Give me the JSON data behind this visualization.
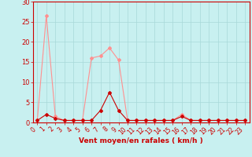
{
  "title": "",
  "xlabel": "Vent moyen/en rafales ( km/h )",
  "ylabel": "",
  "bg_color": "#c8f0f0",
  "grid_color": "#a8d8d8",
  "line1_color": "#ff9090",
  "line2_color": "#cc0000",
  "x": [
    0,
    1,
    2,
    3,
    4,
    5,
    6,
    7,
    8,
    9,
    10,
    11,
    12,
    13,
    14,
    15,
    16,
    17,
    18,
    19,
    20,
    21,
    22,
    23
  ],
  "y_rafales": [
    0.5,
    26.5,
    1.5,
    0.5,
    0.5,
    0.5,
    16.0,
    16.5,
    18.5,
    15.5,
    0.5,
    0.5,
    0.5,
    0.5,
    0.5,
    0.5,
    2.0,
    0.5,
    0.5,
    0.5,
    0.5,
    0.5,
    0.5,
    0.5
  ],
  "y_moyen": [
    0.5,
    2.0,
    1.0,
    0.5,
    0.5,
    0.5,
    0.5,
    3.0,
    7.5,
    3.0,
    0.5,
    0.5,
    0.5,
    0.5,
    0.5,
    0.5,
    1.5,
    0.5,
    0.5,
    0.5,
    0.5,
    0.5,
    0.5,
    0.5
  ],
  "ylim": [
    0,
    30
  ],
  "xlim": [
    -0.5,
    23.5
  ],
  "yticks": [
    0,
    5,
    10,
    15,
    20,
    25,
    30
  ],
  "xticks": [
    0,
    1,
    2,
    3,
    4,
    5,
    6,
    7,
    8,
    9,
    10,
    11,
    12,
    13,
    14,
    15,
    16,
    17,
    18,
    19,
    20,
    21,
    22,
    23
  ],
  "marker": "D",
  "markersize": 2.0,
  "linewidth": 0.8,
  "xlabel_color": "#cc0000",
  "tick_color": "#cc0000",
  "xlabel_fontsize": 6.5,
  "tick_fontsize": 5.5,
  "ytick_fontsize": 6.0
}
